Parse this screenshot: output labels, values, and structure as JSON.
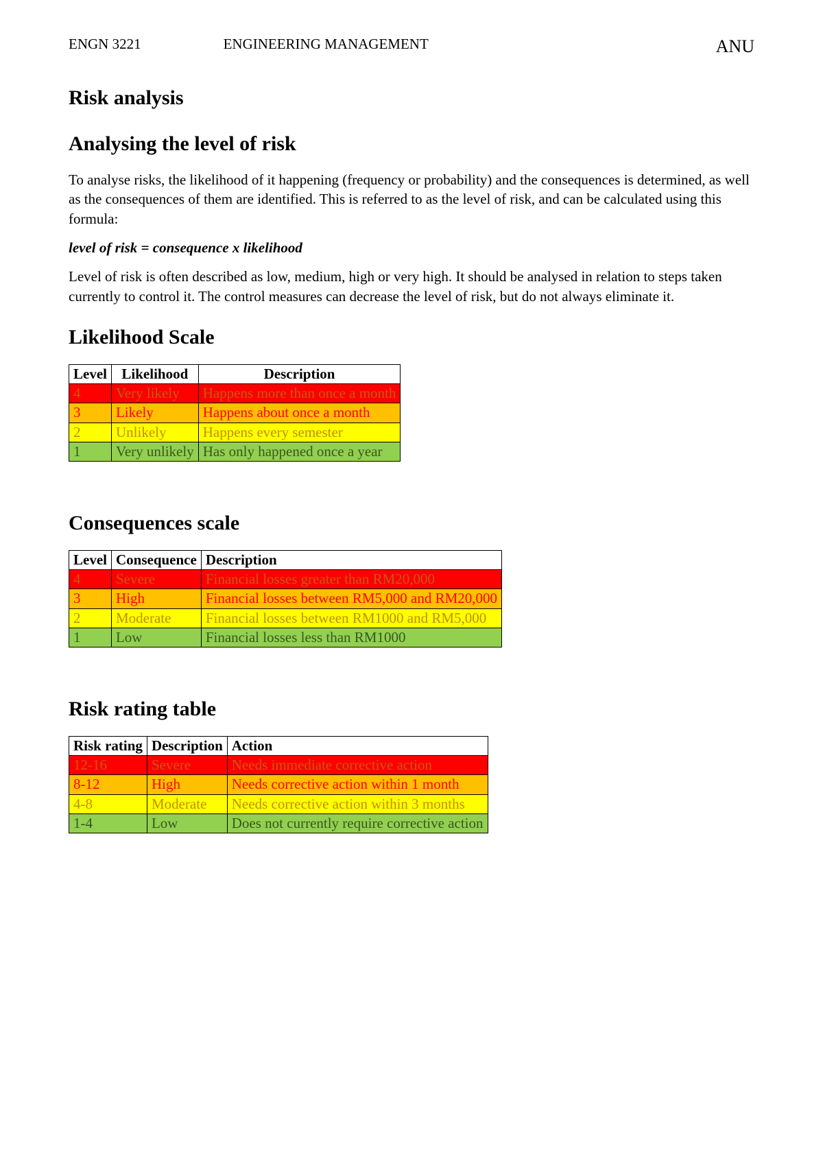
{
  "header": {
    "left": "ENGN 3221",
    "center": "ENGINEERING MANAGEMENT",
    "right": "ANU"
  },
  "colors": {
    "severe_bg": "#ff0000",
    "severe_fg": "#c55a11",
    "high_bg": "#ffc000",
    "high_fg": "#ff0000",
    "moderate_bg": "#ffff00",
    "moderate_fg": "#bf8f00",
    "low_bg": "#92d050",
    "low_fg": "#385723"
  },
  "sections": {
    "risk_analysis_title": "Risk analysis",
    "analysing_title": "Analysing the level of risk",
    "para1": "To analyse risks, the likelihood of it happening (frequency or probability) and the consequences is determined, as well as the consequences of them are identified. This is referred to as the level of risk, and can be calculated using this formula:",
    "formula": "level of risk = consequence x likelihood",
    "para2": "Level of risk is often described as low, medium, high or very high. It should be analysed in relation to steps taken currently to control it. The control measures can decrease the level of risk, but do not always eliminate it.",
    "likelihood_title": "Likelihood Scale",
    "consequences_title": "Consequences scale",
    "risk_rating_title": "Risk rating table"
  },
  "likelihood_table": {
    "headers": [
      "Level",
      "Likelihood",
      "Description"
    ],
    "header_align": [
      "center",
      "center",
      "center"
    ],
    "rows": [
      {
        "cells": [
          "4",
          "Very likely",
          "Happens more than once a month"
        ],
        "bg": "#ff0000",
        "fg": "#c55a11"
      },
      {
        "cells": [
          "3",
          "Likely",
          "Happens about once a month"
        ],
        "bg": "#ffc000",
        "fg": "#ff0000"
      },
      {
        "cells": [
          "2",
          "Unlikely",
          "Happens every semester"
        ],
        "bg": "#ffff00",
        "fg": "#bf8f00"
      },
      {
        "cells": [
          "1",
          "Very unlikely",
          "Has only happened once a year"
        ],
        "bg": "#92d050",
        "fg": "#385723"
      }
    ]
  },
  "consequences_table": {
    "headers": [
      "Level",
      "Consequence",
      "Description"
    ],
    "header_align": [
      "left",
      "left",
      "left"
    ],
    "rows": [
      {
        "cells": [
          "4",
          "Severe",
          "Financial losses greater than RM20,000"
        ],
        "bg": "#ff0000",
        "fg": "#c55a11"
      },
      {
        "cells": [
          "3",
          "High",
          "Financial losses between RM5,000 and RM20,000"
        ],
        "bg": "#ffc000",
        "fg": "#ff0000"
      },
      {
        "cells": [
          "2",
          "Moderate",
          "Financial losses between RM1000 and RM5,000"
        ],
        "bg": "#ffff00",
        "fg": "#bf8f00"
      },
      {
        "cells": [
          "1",
          "Low",
          "Financial losses less than RM1000"
        ],
        "bg": "#92d050",
        "fg": "#385723"
      }
    ]
  },
  "risk_rating_table": {
    "headers": [
      "Risk rating",
      "Description",
      "Action"
    ],
    "header_align": [
      "left",
      "left",
      "left"
    ],
    "rows": [
      {
        "cells": [
          "12-16",
          "Severe",
          "Needs immediate corrective action"
        ],
        "bg": "#ff0000",
        "fg": "#c55a11"
      },
      {
        "cells": [
          "8-12",
          "High",
          "Needs corrective action within 1 month"
        ],
        "bg": "#ffc000",
        "fg": "#ff0000"
      },
      {
        "cells": [
          "4-8",
          "Moderate",
          "Needs corrective action within 3 months"
        ],
        "bg": "#ffff00",
        "fg": "#bf8f00"
      },
      {
        "cells": [
          "1-4",
          "Low",
          "Does not currently require corrective action"
        ],
        "bg": "#92d050",
        "fg": "#385723"
      }
    ]
  }
}
